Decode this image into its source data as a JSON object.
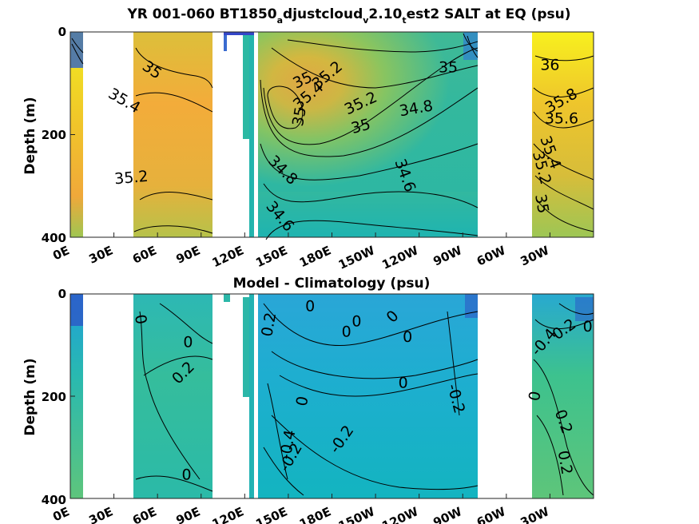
{
  "figure": {
    "title_main": "YR 001-060 BT1850",
    "title_sub_1": "a",
    "title_mid_1": "djustcloud",
    "title_sub_2": "v",
    "title_mid_2": "2.10",
    "title_sub_3": "t",
    "title_end": "est2 SALT at EQ (psu)",
    "subtitle": "Model - Climatology (psu)"
  },
  "chart_data": [
    {
      "type": "heatmap",
      "title": "YR 001-060 BT1850adjustcloudv2.10test2 SALT at EQ (psu)",
      "ylabel": "Depth (m)",
      "xlabel": "",
      "ylim": [
        400,
        0
      ],
      "xlim": [
        0,
        360
      ],
      "y_ticks": [
        "0",
        "200",
        "400"
      ],
      "x_ticks": [
        "0E",
        "30E",
        "60E",
        "90E",
        "120E",
        "150E",
        "180E",
        "150W",
        "120W",
        "90W",
        "60W",
        "30W"
      ],
      "x_tick_values": [
        0,
        30,
        60,
        90,
        120,
        150,
        180,
        210,
        240,
        270,
        300,
        330
      ],
      "contour_labels": [
        {
          "text": "35",
          "lon": 56,
          "depth": 75,
          "rot": 35
        },
        {
          "text": "35.4",
          "lon": 37,
          "depth": 135,
          "rot": 30
        },
        {
          "text": "35.2",
          "lon": 42,
          "depth": 285,
          "rot": -5
        },
        {
          "text": "35",
          "lon": 160,
          "depth": 95,
          "rot": -25
        },
        {
          "text": "35.2",
          "lon": 177,
          "depth": 85,
          "rot": -40
        },
        {
          "text": "35.4",
          "lon": 164,
          "depth": 125,
          "rot": -40
        },
        {
          "text": "35",
          "lon": 158,
          "depth": 165,
          "rot": -80
        },
        {
          "text": "35.2",
          "lon": 200,
          "depth": 140,
          "rot": -25
        },
        {
          "text": "35",
          "lon": 200,
          "depth": 185,
          "rot": -15
        },
        {
          "text": "34.8",
          "lon": 238,
          "depth": 150,
          "rot": -10
        },
        {
          "text": "35",
          "lon": 260,
          "depth": 70,
          "rot": 0
        },
        {
          "text": "34.8",
          "lon": 146,
          "depth": 270,
          "rot": 45
        },
        {
          "text": "34.6",
          "lon": 144,
          "depth": 360,
          "rot": 50
        },
        {
          "text": "34.6",
          "lon": 230,
          "depth": 280,
          "rot": 70
        },
        {
          "text": "36",
          "lon": 330,
          "depth": 65,
          "rot": 0
        },
        {
          "text": "35.8",
          "lon": 338,
          "depth": 135,
          "rot": -30
        },
        {
          "text": "35.6",
          "lon": 338,
          "depth": 170,
          "rot": 0
        },
        {
          "text": "35.4",
          "lon": 330,
          "depth": 235,
          "rot": 70
        },
        {
          "text": "35.2",
          "lon": 324,
          "depth": 265,
          "rot": 75
        },
        {
          "text": "35",
          "lon": 324,
          "depth": 335,
          "rot": 80
        }
      ]
    },
    {
      "type": "heatmap",
      "title": "Model - Climatology (psu)",
      "ylabel": "Depth (m)",
      "xlabel": "",
      "ylim": [
        400,
        0
      ],
      "xlim": [
        0,
        360
      ],
      "y_ticks": [
        "0",
        "200",
        "400"
      ],
      "x_ticks": [
        "0E",
        "30E",
        "60E",
        "90E",
        "120E",
        "150E",
        "180E",
        "150W",
        "120W",
        "90W",
        "60W",
        "30W"
      ],
      "x_tick_values": [
        0,
        30,
        60,
        90,
        120,
        150,
        180,
        210,
        240,
        270,
        300,
        330
      ],
      "contour_labels": [
        {
          "text": "0",
          "lon": 48,
          "depth": 50,
          "rot": 80
        },
        {
          "text": "0",
          "lon": 81,
          "depth": 95,
          "rot": 0
        },
        {
          "text": "0.2",
          "lon": 78,
          "depth": 155,
          "rot": -45
        },
        {
          "text": "0",
          "lon": 80,
          "depth": 355,
          "rot": 0
        },
        {
          "text": "0.2",
          "lon": 137,
          "depth": 60,
          "rot": -80
        },
        {
          "text": "0",
          "lon": 165,
          "depth": 25,
          "rot": 0
        },
        {
          "text": "0",
          "lon": 190,
          "depth": 75,
          "rot": 0
        },
        {
          "text": "0",
          "lon": 197,
          "depth": 55,
          "rot": 0
        },
        {
          "text": "0",
          "lon": 222,
          "depth": 45,
          "rot": -45
        },
        {
          "text": "0",
          "lon": 232,
          "depth": 85,
          "rot": 0
        },
        {
          "text": "0",
          "lon": 229,
          "depth": 175,
          "rot": 0
        },
        {
          "text": "0",
          "lon": 160,
          "depth": 210,
          "rot": -80
        },
        {
          "text": "-0.2",
          "lon": 265,
          "depth": 205,
          "rot": 75
        },
        {
          "text": "-0.2",
          "lon": 187,
          "depth": 285,
          "rot": -55
        },
        {
          "text": "-0.4",
          "lon": 150,
          "depth": 295,
          "rot": -80
        },
        {
          "text": "-0.2",
          "lon": 152,
          "depth": 320,
          "rot": -60
        },
        {
          "text": "-0.4",
          "lon": 326,
          "depth": 95,
          "rot": -50
        },
        {
          "text": "0.2",
          "lon": 340,
          "depth": 70,
          "rot": -35
        },
        {
          "text": "0",
          "lon": 356,
          "depth": 65,
          "rot": 0
        },
        {
          "text": "0",
          "lon": 320,
          "depth": 200,
          "rot": -80
        },
        {
          "text": "0.2",
          "lon": 339,
          "depth": 250,
          "rot": 70
        },
        {
          "text": "0.2",
          "lon": 340,
          "depth": 330,
          "rot": 80
        }
      ]
    }
  ]
}
